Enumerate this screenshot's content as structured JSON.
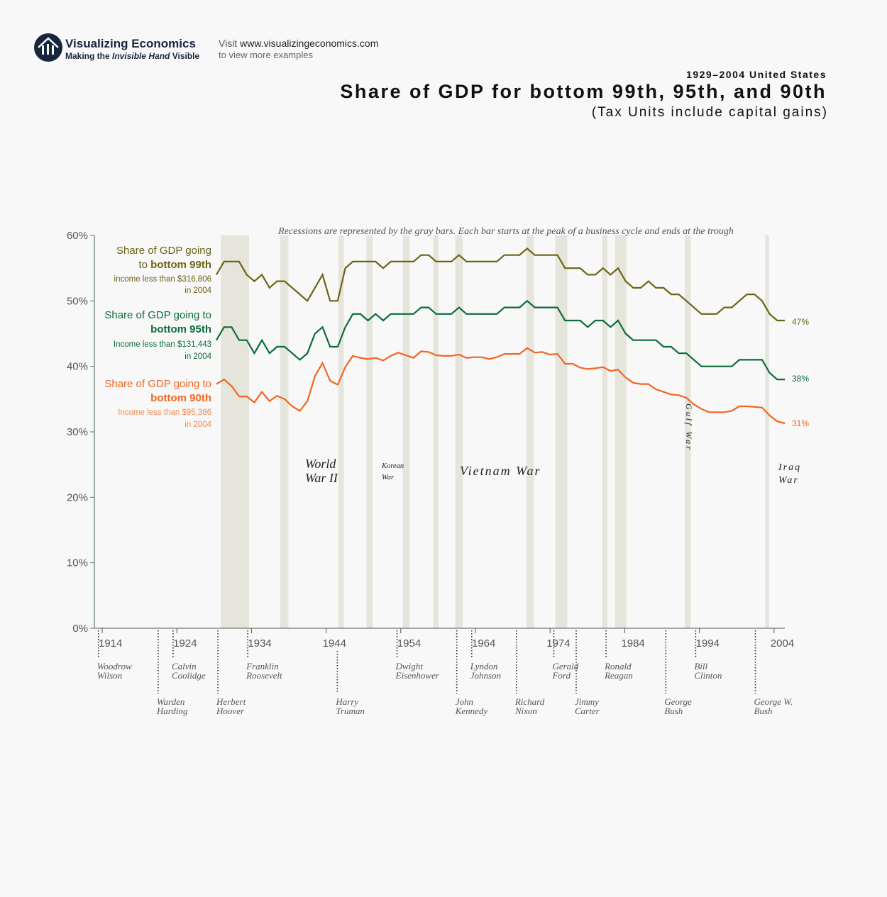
{
  "header": {
    "brand_name": "Visualizing Economics",
    "brand_tagline_pre": "Making the ",
    "brand_tagline_em": "Invisible Hand",
    "brand_tagline_post": " Visible",
    "visit_pre": "Visit ",
    "visit_url": "www.visualizingeconomics.com",
    "visit_sub": "to view more examples"
  },
  "chart_data": {
    "type": "line",
    "supertitle": "1929–2004 United States",
    "title": "Share of GDP for bottom 99th, 95th, and 90th",
    "subtitle": "(Tax Units include capital gains)",
    "note": "Recessions are represented by the gray bars. Each bar starts at the peak of a business cycle and ends at the trough",
    "ylim": [
      0,
      60
    ],
    "y_ticks": [
      "0%",
      "10%",
      "20%",
      "30%",
      "40%",
      "50%",
      "60%"
    ],
    "x_ticks": [
      "1914",
      "1924",
      "1934",
      "1944",
      "1954",
      "1964",
      "1974",
      "1984",
      "1994",
      "2004"
    ],
    "x_start": 1929,
    "series": [
      {
        "name_line1": "Share of GDP going",
        "name_line2_pre": "to ",
        "name_line2_bold": "bottom 99th",
        "income_line1": "income less than $316,806",
        "income_line2": "in 2004",
        "end_label": "47%",
        "color": "#6b6414",
        "values": [
          54,
          56,
          56,
          56,
          54,
          53,
          54,
          52,
          53,
          53,
          52,
          51,
          50,
          52,
          54,
          50,
          50,
          55,
          56,
          56,
          56,
          56,
          55,
          56,
          56,
          56,
          56,
          57,
          57,
          56,
          56,
          56,
          57,
          56,
          56,
          56,
          56,
          56,
          57,
          57,
          57,
          58,
          57,
          57,
          57,
          57,
          55,
          55,
          55,
          54,
          54,
          55,
          54,
          55,
          53,
          52,
          52,
          53,
          52,
          52,
          51,
          51,
          50,
          49,
          48,
          48,
          48,
          49,
          49,
          50,
          51,
          51,
          50,
          48,
          47,
          47
        ]
      },
      {
        "name_line1": "Share of GDP going to",
        "name_line2_pre": "",
        "name_line2_bold": "bottom 95th",
        "income_line1": "Income less than $131,443",
        "income_line2": "in 2004",
        "end_label": "38%",
        "color": "#0b6b3a",
        "values": [
          44,
          46,
          46,
          44,
          44,
          42,
          44,
          42,
          43,
          43,
          42,
          41,
          42,
          45,
          46,
          43,
          43,
          46,
          48,
          48,
          47,
          48,
          47,
          48,
          48,
          48,
          48,
          49,
          49,
          48,
          48,
          48,
          49,
          48,
          48,
          48,
          48,
          48,
          49,
          49,
          49,
          50,
          49,
          49,
          49,
          49,
          47,
          47,
          47,
          46,
          47,
          47,
          46,
          47,
          45,
          44,
          44,
          44,
          44,
          43,
          43,
          42,
          42,
          41,
          40,
          40,
          40,
          40,
          40,
          41,
          41,
          41,
          41,
          39,
          38,
          38
        ]
      },
      {
        "name_line1": "Share of GDP going to",
        "name_line2_pre": "",
        "name_line2_bold": "bottom 90th",
        "income_line1": "Income less than $95,386",
        "income_line2": "in 2004",
        "end_label": "31%",
        "color": "#f26522",
        "values": [
          37.3,
          38.0,
          37.0,
          35.4,
          35.4,
          34.5,
          36.1,
          34.7,
          35.5,
          35.0,
          33.9,
          33.2,
          34.7,
          38.5,
          40.5,
          37.8,
          37.2,
          39.9,
          41.6,
          41.3,
          41.1,
          41.3,
          40.9,
          41.6,
          42.1,
          41.7,
          41.3,
          42.3,
          42.2,
          41.7,
          41.6,
          41.6,
          41.8,
          41.3,
          41.4,
          41.4,
          41.1,
          41.4,
          41.9,
          41.9,
          41.9,
          42.8,
          42.1,
          42.2,
          41.8,
          41.9,
          40.4,
          40.4,
          39.8,
          39.6,
          39.7,
          39.9,
          39.3,
          39.5,
          38.3,
          37.5,
          37.3,
          37.3,
          36.5,
          36.1,
          35.7,
          35.6,
          35.2,
          34.2,
          33.5,
          33.0,
          33.0,
          33.0,
          33.2,
          33.9,
          33.9,
          33.8,
          33.7,
          32.5,
          31.6,
          31.3
        ]
      }
    ],
    "recessions": [
      [
        1929.6,
        1933.3
      ],
      [
        1937.4,
        1938.5
      ],
      [
        1945.1,
        1945.8
      ],
      [
        1948.8,
        1949.6
      ],
      [
        1953.6,
        1954.5
      ],
      [
        1957.6,
        1958.3
      ],
      [
        1960.5,
        1961.5
      ],
      [
        1969.9,
        1970.9
      ],
      [
        1973.7,
        1975.3
      ],
      [
        1979.9,
        1980.6
      ],
      [
        1981.6,
        1983.1
      ],
      [
        1990.8,
        1991.6
      ],
      [
        2001.4,
        2001.9
      ]
    ],
    "recession_color": "#e5e5dc",
    "wars": [
      {
        "line1": "World",
        "line2": "War II"
      },
      {
        "line1": "Korean",
        "line2": "War"
      },
      {
        "line1": "Vietnam War"
      },
      {
        "line1": "Gulf War"
      },
      {
        "line1": "Iraq",
        "line2": "War"
      }
    ],
    "presidents": [
      {
        "first": "Woodrow",
        "last": "Wilson",
        "year": 1913,
        "row": 1
      },
      {
        "first": "Warden",
        "last": "Harding",
        "year": 1921,
        "row": 2
      },
      {
        "first": "Calvin",
        "last": "Coolidge",
        "year": 1923,
        "row": 1
      },
      {
        "first": "Herbert",
        "last": "Hoover",
        "year": 1929,
        "row": 2
      },
      {
        "first": "Franklin",
        "last": "Roosevelt",
        "year": 1933,
        "row": 1
      },
      {
        "first": "Harry",
        "last": "Truman",
        "year": 1945,
        "row": 2
      },
      {
        "first": "Dwight",
        "last": "Eisenhower",
        "year": 1953,
        "row": 1
      },
      {
        "first": "John",
        "last": "Kennedy",
        "year": 1961,
        "row": 2
      },
      {
        "first": "Lyndon",
        "last": "Johnson",
        "year": 1963,
        "row": 1
      },
      {
        "first": "Richard",
        "last": "Nixon",
        "year": 1969,
        "row": 2
      },
      {
        "first": "Gerald",
        "last": "Ford",
        "year": 1974,
        "row": 1
      },
      {
        "first": "Jimmy",
        "last": "Carter",
        "year": 1977,
        "row": 2
      },
      {
        "first": "Ronald",
        "last": "Reagan",
        "year": 1981,
        "row": 1
      },
      {
        "first": "George",
        "last": "Bush",
        "year": 1989,
        "row": 2
      },
      {
        "first": "Bill",
        "last": "Clinton",
        "year": 1993,
        "row": 1
      },
      {
        "first": "George W.",
        "last": "Bush",
        "year": 2001,
        "row": 2
      }
    ]
  }
}
